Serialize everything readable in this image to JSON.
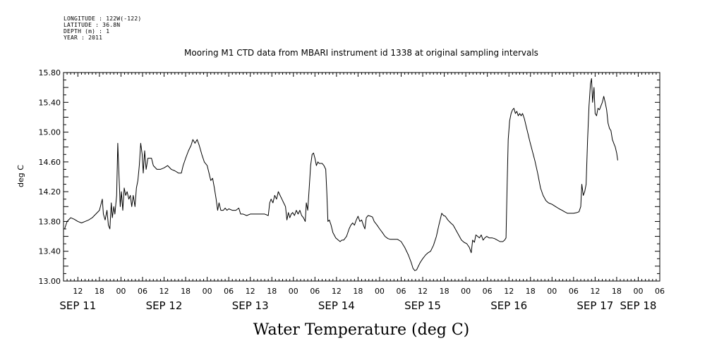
{
  "header": {
    "longitude": "LONGITUDE : 122W(-122)",
    "latitude": "LATITUDE : 36.8N",
    "depth": "DEPTH (m) : 1",
    "year": "YEAR : 2011"
  },
  "chart_data": {
    "type": "line",
    "title": "Mooring M1 CTD data from MBARI instrument id 1338 at original sampling intervals",
    "xlabel": "Water Temperature (deg C)",
    "ylabel": "deg C",
    "ylim": [
      13.0,
      15.8
    ],
    "yticks": [
      "13.00",
      "13.40",
      "13.80",
      "14.20",
      "14.60",
      "15.00",
      "15.40",
      "15.80"
    ],
    "x_unit": "hours since 2011-09-11 00:00",
    "xlim": [
      8,
      174
    ],
    "hour_ticks": [
      {
        "h": 12,
        "label": "12"
      },
      {
        "h": 18,
        "label": "18"
      },
      {
        "h": 24,
        "label": "00"
      },
      {
        "h": 30,
        "label": "06"
      },
      {
        "h": 36,
        "label": "12"
      },
      {
        "h": 42,
        "label": "18"
      },
      {
        "h": 48,
        "label": "00"
      },
      {
        "h": 54,
        "label": "06"
      },
      {
        "h": 60,
        "label": "12"
      },
      {
        "h": 66,
        "label": "18"
      },
      {
        "h": 72,
        "label": "00"
      },
      {
        "h": 78,
        "label": "06"
      },
      {
        "h": 84,
        "label": "12"
      },
      {
        "h": 90,
        "label": "18"
      },
      {
        "h": 96,
        "label": "00"
      },
      {
        "h": 102,
        "label": "06"
      },
      {
        "h": 108,
        "label": "12"
      },
      {
        "h": 114,
        "label": "18"
      },
      {
        "h": 120,
        "label": "00"
      },
      {
        "h": 126,
        "label": "06"
      },
      {
        "h": 132,
        "label": "12"
      },
      {
        "h": 138,
        "label": "18"
      },
      {
        "h": 144,
        "label": "00"
      },
      {
        "h": 150,
        "label": "06"
      },
      {
        "h": 156,
        "label": "12"
      },
      {
        "h": 162,
        "label": "18"
      },
      {
        "h": 168,
        "label": "00"
      },
      {
        "h": 174,
        "label": "06"
      }
    ],
    "date_labels": [
      {
        "h": 12,
        "label": "SEP 11"
      },
      {
        "h": 36,
        "label": "SEP 12"
      },
      {
        "h": 60,
        "label": "SEP 13"
      },
      {
        "h": 84,
        "label": "SEP 14"
      },
      {
        "h": 108,
        "label": "SEP 15"
      },
      {
        "h": 132,
        "label": "SEP 16"
      },
      {
        "h": 156,
        "label": "SEP 17"
      },
      {
        "h": 168,
        "label": "SEP 18"
      }
    ],
    "series": [
      {
        "values": [
          [
            8.3,
            13.7
          ],
          [
            9.0,
            13.8
          ],
          [
            10.0,
            13.85
          ],
          [
            11.0,
            13.83
          ],
          [
            12.0,
            13.8
          ],
          [
            13.0,
            13.78
          ],
          [
            14.0,
            13.8
          ],
          [
            15.0,
            13.82
          ],
          [
            16.0,
            13.85
          ],
          [
            17.0,
            13.9
          ],
          [
            18.0,
            13.95
          ],
          [
            18.8,
            14.1
          ],
          [
            19.1,
            13.9
          ],
          [
            19.6,
            13.82
          ],
          [
            20.1,
            13.95
          ],
          [
            20.5,
            13.75
          ],
          [
            20.9,
            13.7
          ],
          [
            21.3,
            14.05
          ],
          [
            21.6,
            13.85
          ],
          [
            22.0,
            14.0
          ],
          [
            22.3,
            13.9
          ],
          [
            22.8,
            14.15
          ],
          [
            23.1,
            14.85
          ],
          [
            23.5,
            14.35
          ],
          [
            23.8,
            14.0
          ],
          [
            24.1,
            14.2
          ],
          [
            24.5,
            13.95
          ],
          [
            24.9,
            14.25
          ],
          [
            25.3,
            14.15
          ],
          [
            25.7,
            14.2
          ],
          [
            26.2,
            14.1
          ],
          [
            26.6,
            14.15
          ],
          [
            27.0,
            14.0
          ],
          [
            27.4,
            14.15
          ],
          [
            27.9,
            14.0
          ],
          [
            28.3,
            14.25
          ],
          [
            28.7,
            14.35
          ],
          [
            29.1,
            14.55
          ],
          [
            29.5,
            14.85
          ],
          [
            29.9,
            14.7
          ],
          [
            30.2,
            14.45
          ],
          [
            30.6,
            14.75
          ],
          [
            31.0,
            14.5
          ],
          [
            31.5,
            14.65
          ],
          [
            32.5,
            14.65
          ],
          [
            33.0,
            14.55
          ],
          [
            34.0,
            14.5
          ],
          [
            35.0,
            14.5
          ],
          [
            36.0,
            14.52
          ],
          [
            37.0,
            14.55
          ],
          [
            38.0,
            14.5
          ],
          [
            39.0,
            14.48
          ],
          [
            40.0,
            14.45
          ],
          [
            40.8,
            14.45
          ],
          [
            41.3,
            14.55
          ],
          [
            42.0,
            14.65
          ],
          [
            42.8,
            14.75
          ],
          [
            43.5,
            14.82
          ],
          [
            44.0,
            14.9
          ],
          [
            44.6,
            14.85
          ],
          [
            45.2,
            14.9
          ],
          [
            45.8,
            14.82
          ],
          [
            46.5,
            14.7
          ],
          [
            47.2,
            14.6
          ],
          [
            48.0,
            14.55
          ],
          [
            48.5,
            14.45
          ],
          [
            49.0,
            14.35
          ],
          [
            49.5,
            14.38
          ],
          [
            50.0,
            14.25
          ],
          [
            50.5,
            14.1
          ],
          [
            50.9,
            13.95
          ],
          [
            51.3,
            14.05
          ],
          [
            51.8,
            13.95
          ],
          [
            52.5,
            13.95
          ],
          [
            53.0,
            13.98
          ],
          [
            53.5,
            13.95
          ],
          [
            54.0,
            13.97
          ],
          [
            55.0,
            13.95
          ],
          [
            56.0,
            13.95
          ],
          [
            56.8,
            13.98
          ],
          [
            57.3,
            13.9
          ],
          [
            58.0,
            13.9
          ],
          [
            59.0,
            13.88
          ],
          [
            60.0,
            13.9
          ],
          [
            61.0,
            13.9
          ],
          [
            62.0,
            13.9
          ],
          [
            63.0,
            13.9
          ],
          [
            64.0,
            13.9
          ],
          [
            65.0,
            13.88
          ],
          [
            65.4,
            14.05
          ],
          [
            65.8,
            14.1
          ],
          [
            66.3,
            14.05
          ],
          [
            66.8,
            14.15
          ],
          [
            67.3,
            14.1
          ],
          [
            67.8,
            14.2
          ],
          [
            68.3,
            14.15
          ],
          [
            68.8,
            14.1
          ],
          [
            69.3,
            14.05
          ],
          [
            69.8,
            14.0
          ],
          [
            70.2,
            13.82
          ],
          [
            70.6,
            13.92
          ],
          [
            71.0,
            13.85
          ],
          [
            71.4,
            13.9
          ],
          [
            71.8,
            13.92
          ],
          [
            72.3,
            13.88
          ],
          [
            72.8,
            13.95
          ],
          [
            73.3,
            13.9
          ],
          [
            73.8,
            13.95
          ],
          [
            74.3,
            13.88
          ],
          [
            74.8,
            13.85
          ],
          [
            75.3,
            13.8
          ],
          [
            75.6,
            14.05
          ],
          [
            76.0,
            13.95
          ],
          [
            76.4,
            14.25
          ],
          [
            76.8,
            14.55
          ],
          [
            77.2,
            14.7
          ],
          [
            77.6,
            14.72
          ],
          [
            78.0,
            14.65
          ],
          [
            78.4,
            14.55
          ],
          [
            78.8,
            14.6
          ],
          [
            79.2,
            14.58
          ],
          [
            80.0,
            14.58
          ],
          [
            80.5,
            14.55
          ],
          [
            81.0,
            14.5
          ],
          [
            81.3,
            14.2
          ],
          [
            81.6,
            13.8
          ],
          [
            82.0,
            13.82
          ],
          [
            82.5,
            13.75
          ],
          [
            83.0,
            13.65
          ],
          [
            83.8,
            13.58
          ],
          [
            84.5,
            13.55
          ],
          [
            85.0,
            13.53
          ],
          [
            85.5,
            13.55
          ],
          [
            86.0,
            13.55
          ],
          [
            86.8,
            13.6
          ],
          [
            87.5,
            13.7
          ],
          [
            88.0,
            13.75
          ],
          [
            88.5,
            13.78
          ],
          [
            89.0,
            13.75
          ],
          [
            89.5,
            13.82
          ],
          [
            90.0,
            13.87
          ],
          [
            90.5,
            13.8
          ],
          [
            91.0,
            13.82
          ],
          [
            91.5,
            13.75
          ],
          [
            91.9,
            13.7
          ],
          [
            92.3,
            13.85
          ],
          [
            92.8,
            13.88
          ],
          [
            93.5,
            13.87
          ],
          [
            94.0,
            13.86
          ],
          [
            94.5,
            13.8
          ],
          [
            95.3,
            13.75
          ],
          [
            96.0,
            13.7
          ],
          [
            96.8,
            13.65
          ],
          [
            97.5,
            13.6
          ],
          [
            98.3,
            13.57
          ],
          [
            99.0,
            13.56
          ],
          [
            100.0,
            13.56
          ],
          [
            101.0,
            13.56
          ],
          [
            102.0,
            13.53
          ],
          [
            103.0,
            13.45
          ],
          [
            104.0,
            13.35
          ],
          [
            104.8,
            13.25
          ],
          [
            105.3,
            13.17
          ],
          [
            105.8,
            13.14
          ],
          [
            106.3,
            13.15
          ],
          [
            106.8,
            13.2
          ],
          [
            107.3,
            13.25
          ],
          [
            108.0,
            13.3
          ],
          [
            108.8,
            13.35
          ],
          [
            109.5,
            13.38
          ],
          [
            110.2,
            13.4
          ],
          [
            111.0,
            13.48
          ],
          [
            111.8,
            13.6
          ],
          [
            112.5,
            13.75
          ],
          [
            113.0,
            13.85
          ],
          [
            113.3,
            13.91
          ],
          [
            113.8,
            13.88
          ],
          [
            114.3,
            13.87
          ],
          [
            115.0,
            13.82
          ],
          [
            115.8,
            13.78
          ],
          [
            116.5,
            13.75
          ],
          [
            117.3,
            13.68
          ],
          [
            118.0,
            13.62
          ],
          [
            118.8,
            13.55
          ],
          [
            119.5,
            13.52
          ],
          [
            120.3,
            13.5
          ],
          [
            121.0,
            13.45
          ],
          [
            121.5,
            13.38
          ],
          [
            121.9,
            13.55
          ],
          [
            122.4,
            13.52
          ],
          [
            122.8,
            13.62
          ],
          [
            123.3,
            13.6
          ],
          [
            123.8,
            13.58
          ],
          [
            124.3,
            13.62
          ],
          [
            124.8,
            13.55
          ],
          [
            125.3,
            13.58
          ],
          [
            125.8,
            13.6
          ],
          [
            126.5,
            13.58
          ],
          [
            127.3,
            13.58
          ],
          [
            128.0,
            13.57
          ],
          [
            128.8,
            13.55
          ],
          [
            129.5,
            13.53
          ],
          [
            130.3,
            13.53
          ],
          [
            130.8,
            13.55
          ],
          [
            131.2,
            13.58
          ],
          [
            131.5,
            14.3
          ],
          [
            131.8,
            14.9
          ],
          [
            132.2,
            15.15
          ],
          [
            132.6,
            15.25
          ],
          [
            133.0,
            15.3
          ],
          [
            133.4,
            15.32
          ],
          [
            133.8,
            15.25
          ],
          [
            134.2,
            15.28
          ],
          [
            134.6,
            15.22
          ],
          [
            135.0,
            15.25
          ],
          [
            135.4,
            15.22
          ],
          [
            135.8,
            15.25
          ],
          [
            136.3,
            15.18
          ],
          [
            136.8,
            15.08
          ],
          [
            137.3,
            14.98
          ],
          [
            137.8,
            14.88
          ],
          [
            138.5,
            14.75
          ],
          [
            139.2,
            14.62
          ],
          [
            140.0,
            14.45
          ],
          [
            140.8,
            14.25
          ],
          [
            141.5,
            14.15
          ],
          [
            142.3,
            14.08
          ],
          [
            143.0,
            14.05
          ],
          [
            144.0,
            14.03
          ],
          [
            145.0,
            14.0
          ],
          [
            146.0,
            13.97
          ],
          [
            146.8,
            13.95
          ],
          [
            147.5,
            13.93
          ],
          [
            148.3,
            13.91
          ],
          [
            149.0,
            13.91
          ],
          [
            150.0,
            13.91
          ],
          [
            151.0,
            13.92
          ],
          [
            151.5,
            13.93
          ],
          [
            152.0,
            14.0
          ],
          [
            152.3,
            14.3
          ],
          [
            152.7,
            14.15
          ],
          [
            153.1,
            14.2
          ],
          [
            153.5,
            14.3
          ],
          [
            153.9,
            14.9
          ],
          [
            154.3,
            15.35
          ],
          [
            154.7,
            15.65
          ],
          [
            155.0,
            15.72
          ],
          [
            155.3,
            15.4
          ],
          [
            155.7,
            15.6
          ],
          [
            156.0,
            15.25
          ],
          [
            156.4,
            15.22
          ],
          [
            156.8,
            15.32
          ],
          [
            157.2,
            15.3
          ],
          [
            157.6,
            15.35
          ],
          [
            158.0,
            15.4
          ],
          [
            158.4,
            15.48
          ],
          [
            158.8,
            15.4
          ],
          [
            159.2,
            15.3
          ],
          [
            159.6,
            15.12
          ],
          [
            160.0,
            15.05
          ],
          [
            160.4,
            15.02
          ],
          [
            160.8,
            14.9
          ],
          [
            161.2,
            14.85
          ],
          [
            161.6,
            14.8
          ],
          [
            162.0,
            14.72
          ],
          [
            162.3,
            14.62
          ]
        ]
      }
    ]
  }
}
